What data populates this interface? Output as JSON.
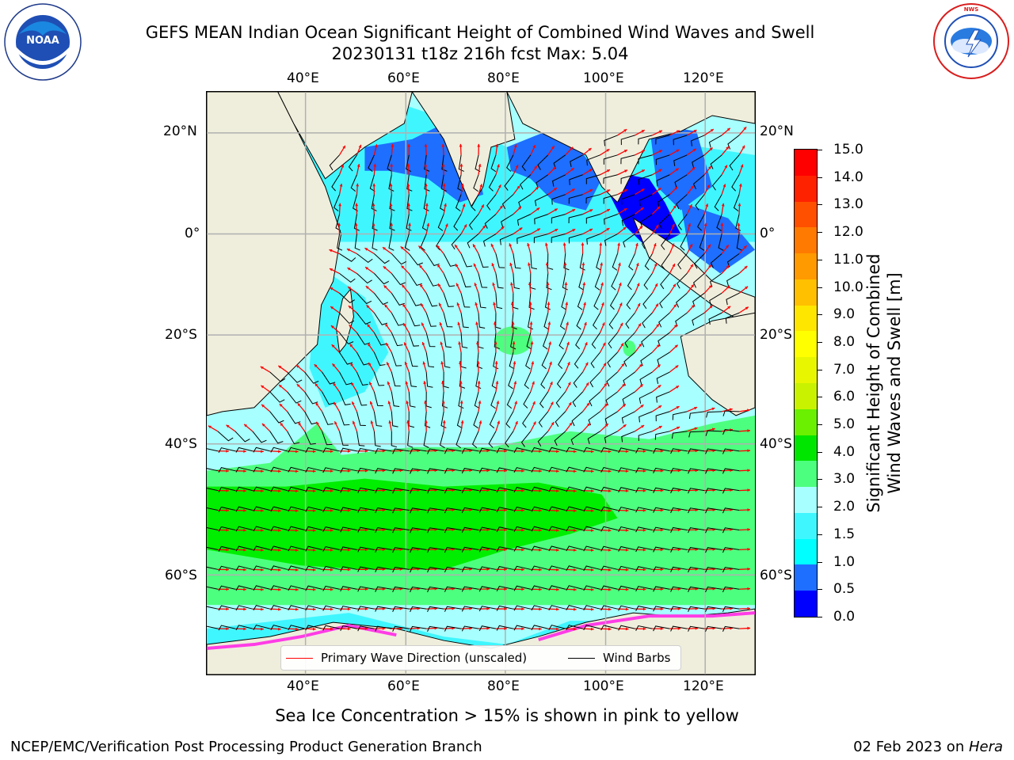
{
  "header": {
    "title_line1": "GEFS MEAN Indian Ocean Significant Height of Combined Wind Waves and Swell",
    "title_line2": "20230131 t18z 216h fcst   Max: 5.04"
  },
  "logos": {
    "noaa": {
      "text": "NOAA",
      "ring_text": "NATIONAL OCEANIC AND ATMOSPHERIC ADMINISTRATION",
      "bottom_text": "U.S. DEPARTMENT OF COMMERCE"
    },
    "nws": {
      "ring_text": "NATIONAL WEATHER SERVICE"
    }
  },
  "map": {
    "lon_labels_top": [
      "40°E",
      "60°E",
      "80°E",
      "100°E",
      "120°E"
    ],
    "lon_labels_bottom": [
      "40°E",
      "60°E",
      "80°E",
      "100°E",
      "120°E"
    ],
    "lat_labels_left": [
      "20°N",
      "0°",
      "20°S",
      "40°S",
      "60°S"
    ],
    "lat_labels_right": [
      "20°N",
      "0°",
      "20°S",
      "40°S",
      "60°S"
    ],
    "colors": {
      "land": "#efeedc",
      "ocean_light": "#a7ffff",
      "ocean_cyan": "#3ff6ff",
      "ocean_blue": "#1e6eff",
      "deep_blue": "#0000ff",
      "green_light": "#4dff7f",
      "green": "#00ee00",
      "ice_pink": "#ff3ce6",
      "wave_arrow": "#ff0000",
      "barb": "#000000",
      "grid": "#b0b0b0"
    }
  },
  "legend": {
    "wave_label": "Primary Wave Direction (unscaled)",
    "barb_label": "Wind Barbs",
    "wave_color": "#ff0000",
    "barb_color": "#000000"
  },
  "colorbar": {
    "title_line1": "Significant Height of Combined",
    "title_line2": "Wind Waves and Swell [m]",
    "ticks": [
      "15.0",
      "14.0",
      "13.0",
      "12.0",
      "11.0",
      "10.0",
      "9.0",
      "8.0",
      "7.0",
      "6.0",
      "5.0",
      "4.0",
      "3.0",
      "2.0",
      "1.5",
      "1.0",
      "0.5",
      "0.0"
    ],
    "colors_top_down": [
      "#ff0000",
      "#ff2200",
      "#ff5000",
      "#ff7a00",
      "#ff9a00",
      "#ffc000",
      "#ffe600",
      "#ffff00",
      "#e8f600",
      "#c9f200",
      "#6af000",
      "#00e600",
      "#4dff7f",
      "#a7ffff",
      "#3ff6ff",
      "#00ffff",
      "#1e6eff",
      "#0000ff"
    ]
  },
  "footer": {
    "ice_note": "Sea Ice Concentration > 15% is shown in pink to yellow",
    "credit_left": "NCEP/EMC/Verification Post Processing Product Generation Branch",
    "date_prefix": "02 Feb 2023 on ",
    "machine": "Hera"
  }
}
